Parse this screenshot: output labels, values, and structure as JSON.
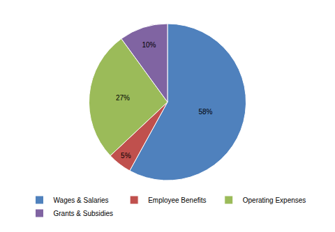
{
  "chart_data": {
    "type": "pie",
    "categories": [
      "Wages & Salaries",
      "Employee Benefits",
      "Operating Expenses",
      "Grants & Subsidies"
    ],
    "values": [
      58,
      5,
      27,
      10
    ],
    "value_labels": [
      "58%",
      "5%",
      "27%",
      "10%"
    ],
    "colors": [
      "#4f81bd",
      "#c0504d",
      "#9bbb59",
      "#8064a2"
    ],
    "data_labels": true,
    "legend": "bottom"
  }
}
